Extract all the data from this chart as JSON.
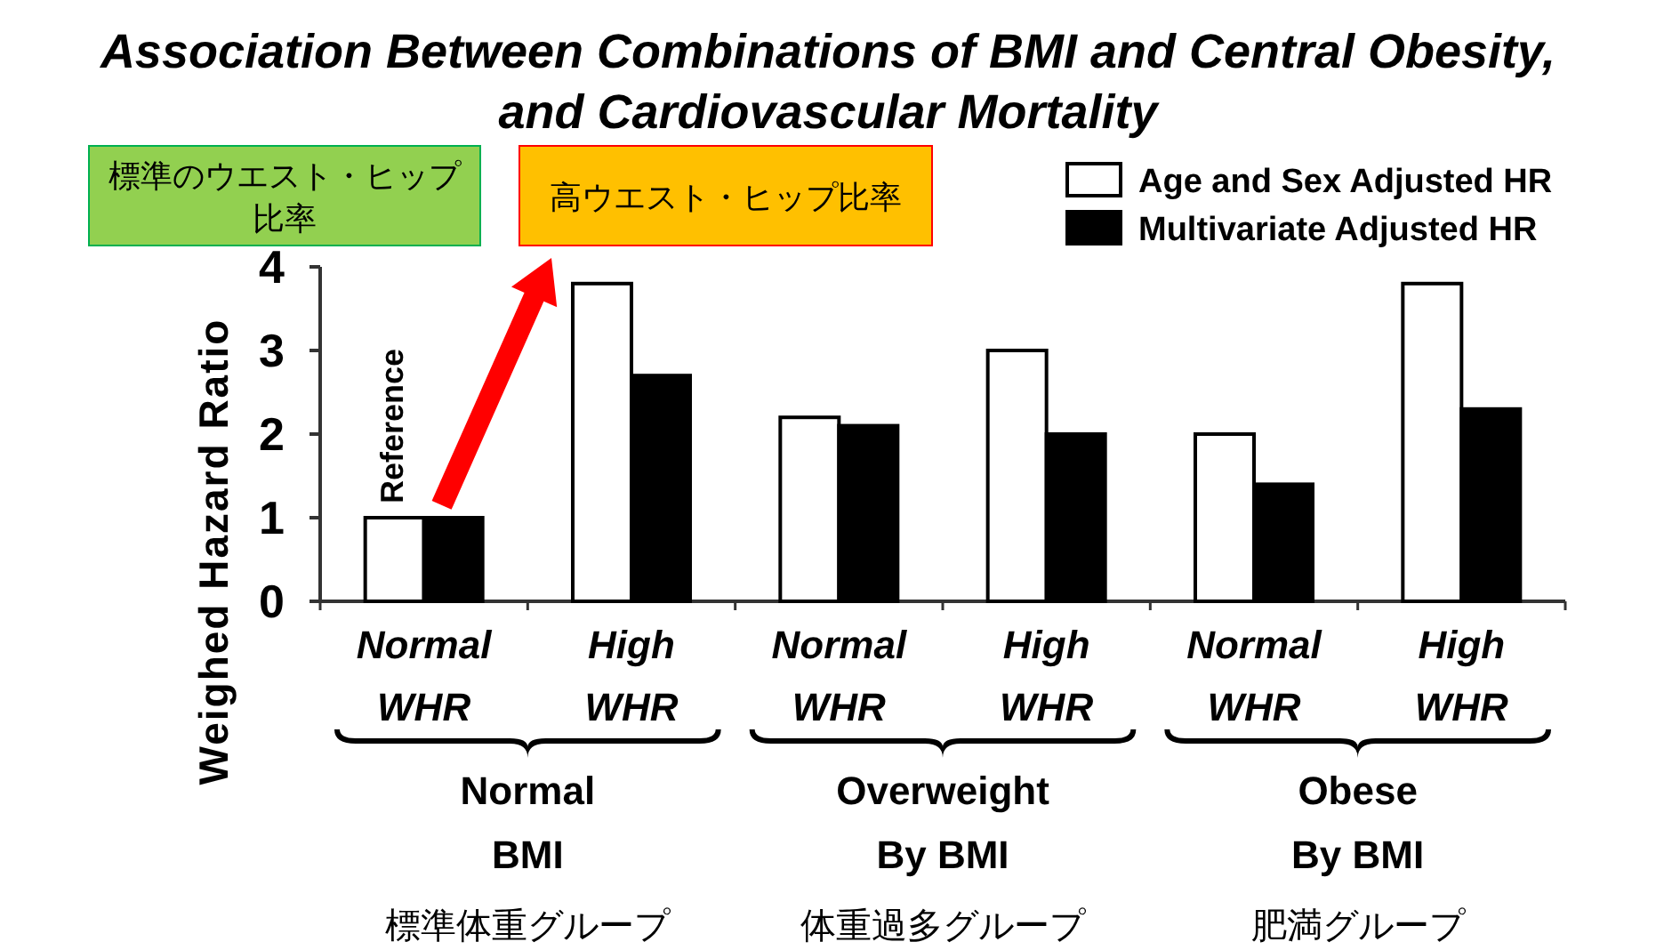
{
  "chart_data": {
    "type": "bar",
    "title": "Association Between Combinations of BMI and Central Obesity, and Cardiovascular Mortality",
    "ylabel": "Weighed Hazard Ratio",
    "categories": [
      "Normal WHR",
      "High WHR",
      "Normal WHR",
      "High WHR",
      "Normal WHR",
      "High WHR"
    ],
    "series": [
      {
        "name": "Age and Sex Adjusted HR",
        "color": "#ffffff",
        "values": [
          1.0,
          3.8,
          2.2,
          3.0,
          2.0,
          3.8
        ]
      },
      {
        "name": "Multivariate Adjusted HR",
        "color": "#000000",
        "values": [
          1.0,
          2.7,
          2.1,
          2.0,
          1.4,
          2.3
        ]
      }
    ],
    "ylim": [
      0,
      4
    ],
    "yticks": [
      0,
      1,
      2,
      3,
      4
    ],
    "legend": "top",
    "annotations": [
      "Normal BMI",
      "Overweight By BMI",
      "Obese By BMI",
      "標準体重グループ",
      "体重過多グループ",
      "肥満グループ",
      "Reference",
      "標準のウエスト・ヒップ比率",
      "高ウエスト・ヒップ比率"
    ]
  }
}
